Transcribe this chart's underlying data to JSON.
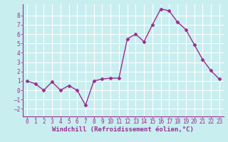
{
  "x": [
    0,
    1,
    2,
    3,
    4,
    5,
    6,
    7,
    8,
    9,
    10,
    11,
    12,
    13,
    14,
    15,
    16,
    17,
    18,
    19,
    20,
    21,
    22,
    23
  ],
  "y": [
    1.0,
    0.7,
    0.0,
    0.9,
    0.0,
    0.5,
    0.0,
    -1.6,
    1.0,
    1.2,
    1.3,
    1.3,
    5.5,
    6.0,
    5.2,
    7.0,
    8.7,
    8.5,
    7.3,
    6.5,
    4.9,
    3.3,
    2.1,
    1.2
  ],
  "line_color": "#9b2d8e",
  "marker": "D",
  "marker_size": 2.5,
  "linewidth": 1.0,
  "xlabel": "Windchill (Refroidissement éolien,°C)",
  "xlim": [
    -0.5,
    23.5
  ],
  "ylim": [
    -2.8,
    9.2
  ],
  "yticks": [
    -2,
    -1,
    0,
    1,
    2,
    3,
    4,
    5,
    6,
    7,
    8
  ],
  "xticks": [
    0,
    1,
    2,
    3,
    4,
    5,
    6,
    7,
    8,
    9,
    10,
    11,
    12,
    13,
    14,
    15,
    16,
    17,
    18,
    19,
    20,
    21,
    22,
    23
  ],
  "bg_color": "#c8eef0",
  "grid_color": "#ffffff",
  "tick_color": "#9b2d8e",
  "label_color": "#9b2d8e",
  "xlabel_fontsize": 6.5,
  "tick_fontsize": 5.5
}
